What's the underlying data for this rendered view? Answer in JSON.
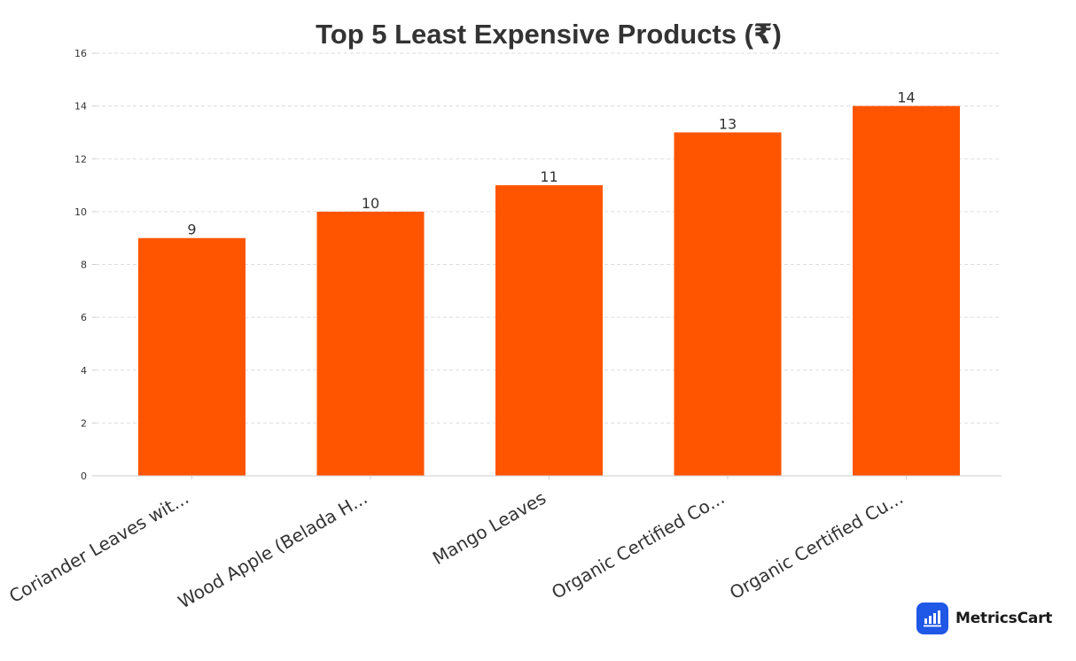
{
  "chart_data": {
    "type": "bar",
    "title": "Top 5 Least Expensive Products (₹)",
    "xlabel": "",
    "ylabel": "",
    "categories": [
      "Coriander Leaves wit...",
      "Wood Apple (Belada H...",
      "Mango Leaves",
      "Organic Certified Co...",
      "Organic Certified Cu..."
    ],
    "values": [
      9,
      10,
      11,
      13,
      14
    ],
    "ylim": [
      0,
      16
    ],
    "yticks": [
      0,
      2,
      4,
      6,
      8,
      10,
      12,
      14,
      16
    ],
    "grid": true,
    "bar_color": "#FF5500",
    "data_labels": true
  },
  "brand": {
    "name": "MetricsCart",
    "icon": "bar-chart-icon",
    "icon_color": "#1F57E6"
  }
}
